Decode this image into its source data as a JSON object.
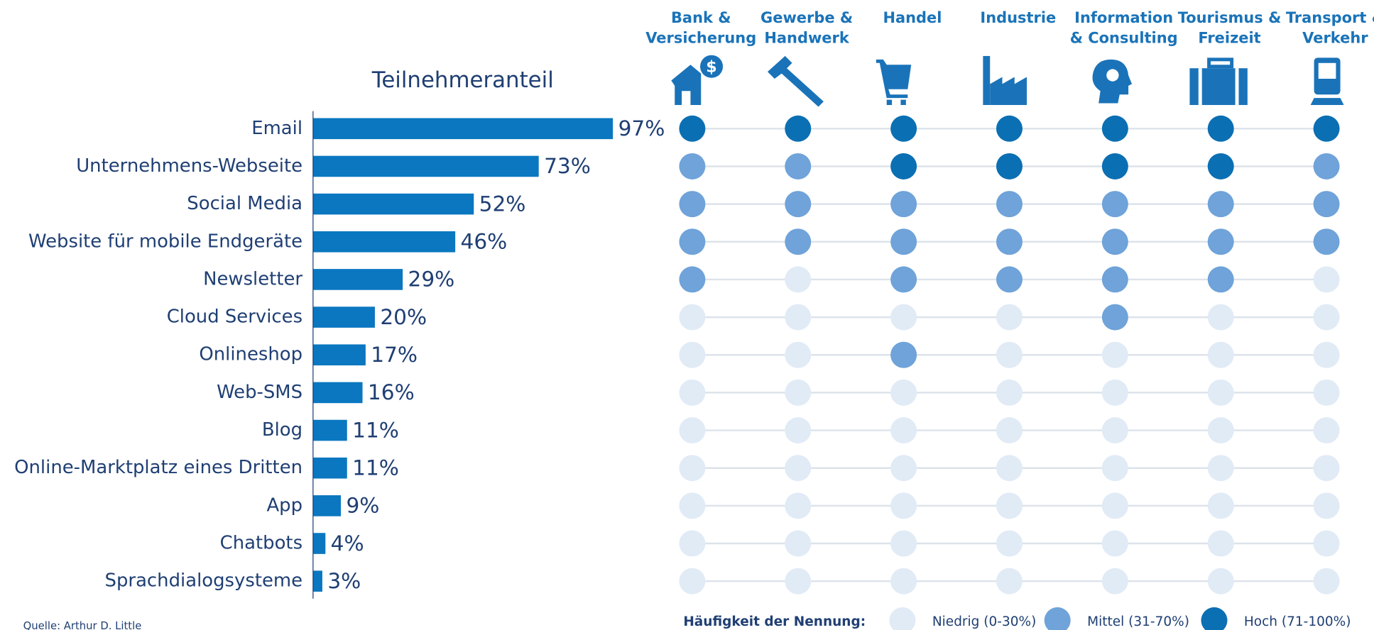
{
  "chart_data": [
    {
      "type": "bar",
      "title": "Teilnehmeranteil",
      "color": "#0a77c0",
      "categories": [
        "Email",
        "Unternehmens-Webseite",
        "Social Media",
        "Website für mobile Endgeräte",
        "Newsletter",
        "Cloud Services",
        "Onlineshop",
        "Web-SMS",
        "Blog",
        "Online-Marktplatz eines Dritten",
        "App",
        "Chatbots",
        "Sprachdialogsysteme"
      ],
      "values": [
        97,
        73,
        52,
        46,
        29,
        20,
        17,
        16,
        11,
        11,
        9,
        4,
        3
      ],
      "value_labels": [
        "97%",
        "73%",
        "52%",
        "46%",
        "29%",
        "20%",
        "17%",
        "16%",
        "11%",
        "11%",
        "9%",
        "4%",
        "3%"
      ]
    },
    {
      "type": "dot-matrix",
      "columns": [
        [
          "Bank &",
          "Versicherung"
        ],
        [
          "Gewerbe &",
          "Handwerk"
        ],
        [
          "Handel"
        ],
        [
          "Industrie"
        ],
        [
          "Information",
          "& Consulting"
        ],
        [
          "Tourismus &",
          "Freizeit"
        ],
        [
          "Transport &",
          "Verkehr"
        ]
      ],
      "legend_title": "Häufigkeit der Nennung:",
      "legend": [
        {
          "name": "Niedrig (0-30%)",
          "color": "#e1ebf6"
        },
        {
          "name": "Mittel (31-70%)",
          "color": "#6fa3d9"
        },
        {
          "name": "Hoch (71-100%)",
          "color": "#0b6fb3"
        }
      ],
      "cells": [
        [
          "Hoch (71-100%)",
          "Hoch (71-100%)",
          "Hoch (71-100%)",
          "Hoch (71-100%)",
          "Hoch (71-100%)",
          "Hoch (71-100%)",
          "Hoch (71-100%)"
        ],
        [
          "Mittel (31-70%)",
          "Mittel (31-70%)",
          "Hoch (71-100%)",
          "Hoch (71-100%)",
          "Hoch (71-100%)",
          "Hoch (71-100%)",
          "Mittel (31-70%)"
        ],
        [
          "Mittel (31-70%)",
          "Mittel (31-70%)",
          "Mittel (31-70%)",
          "Mittel (31-70%)",
          "Mittel (31-70%)",
          "Mittel (31-70%)",
          "Mittel (31-70%)"
        ],
        [
          "Mittel (31-70%)",
          "Mittel (31-70%)",
          "Mittel (31-70%)",
          "Mittel (31-70%)",
          "Mittel (31-70%)",
          "Mittel (31-70%)",
          "Mittel (31-70%)"
        ],
        [
          "Mittel (31-70%)",
          "Niedrig (0-30%)",
          "Mittel (31-70%)",
          "Mittel (31-70%)",
          "Mittel (31-70%)",
          "Mittel (31-70%)",
          "Niedrig (0-30%)"
        ],
        [
          "Niedrig (0-30%)",
          "Niedrig (0-30%)",
          "Niedrig (0-30%)",
          "Niedrig (0-30%)",
          "Mittel (31-70%)",
          "Niedrig (0-30%)",
          "Niedrig (0-30%)"
        ],
        [
          "Niedrig (0-30%)",
          "Niedrig (0-30%)",
          "Mittel (31-70%)",
          "Niedrig (0-30%)",
          "Niedrig (0-30%)",
          "Niedrig (0-30%)",
          "Niedrig (0-30%)"
        ],
        [
          "Niedrig (0-30%)",
          "Niedrig (0-30%)",
          "Niedrig (0-30%)",
          "Niedrig (0-30%)",
          "Niedrig (0-30%)",
          "Niedrig (0-30%)",
          "Niedrig (0-30%)"
        ],
        [
          "Niedrig (0-30%)",
          "Niedrig (0-30%)",
          "Niedrig (0-30%)",
          "Niedrig (0-30%)",
          "Niedrig (0-30%)",
          "Niedrig (0-30%)",
          "Niedrig (0-30%)"
        ],
        [
          "Niedrig (0-30%)",
          "Niedrig (0-30%)",
          "Niedrig (0-30%)",
          "Niedrig (0-30%)",
          "Niedrig (0-30%)",
          "Niedrig (0-30%)",
          "Niedrig (0-30%)"
        ],
        [
          "Niedrig (0-30%)",
          "Niedrig (0-30%)",
          "Niedrig (0-30%)",
          "Niedrig (0-30%)",
          "Niedrig (0-30%)",
          "Niedrig (0-30%)",
          "Niedrig (0-30%)"
        ],
        [
          "Niedrig (0-30%)",
          "Niedrig (0-30%)",
          "Niedrig (0-30%)",
          "Niedrig (0-30%)",
          "Niedrig (0-30%)",
          "Niedrig (0-30%)",
          "Niedrig (0-30%)"
        ],
        [
          "Niedrig (0-30%)",
          "Niedrig (0-30%)",
          "Niedrig (0-30%)",
          "Niedrig (0-30%)",
          "Niedrig (0-30%)",
          "Niedrig (0-30%)",
          "Niedrig (0-30%)"
        ]
      ]
    }
  ],
  "source": "Quelle: Arthur D. Little"
}
